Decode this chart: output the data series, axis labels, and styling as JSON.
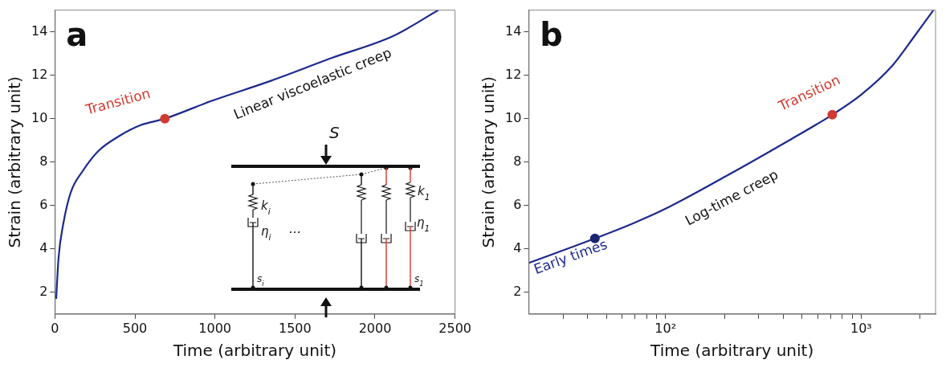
{
  "chart_data": [
    {
      "type": "line",
      "xlabel": "Time (arbitrary unit)",
      "ylabel": "Strain (arbitrary unit)",
      "xlim": [
        0,
        2500
      ],
      "ylim": [
        1,
        15
      ],
      "xticks": [
        0,
        500,
        1000,
        1500,
        2000,
        2500
      ],
      "yticks": [
        2,
        4,
        6,
        8,
        10,
        12,
        14
      ],
      "line_style": "solid",
      "series": [
        {
          "type": "line",
          "color": "#1c2a8c",
          "marker": "none",
          "x": [
            8,
            23,
            51,
            99,
            175,
            270,
            402,
            535,
            687,
            972,
            1352,
            1731,
            2111,
            2396
          ],
          "values": [
            1.7,
            3.6,
            5.1,
            6.6,
            7.6,
            8.5,
            9.2,
            9.7,
            10.0,
            10.8,
            11.75,
            12.8,
            13.8,
            15.0
          ]
        },
        {
          "type": "scatter",
          "color": "#d03a30",
          "marker": "circle",
          "x": [
            687
          ],
          "values": [
            10.0
          ]
        }
      ],
      "annotations": [
        "a",
        {
          "text": "Transition",
          "x": 687,
          "y": 10.0
        },
        "Linear viscoelastic creep",
        "S",
        "k$_{i}$",
        "η$_{i}$",
        "s$_{i}$",
        "...",
        "k$_{1}$",
        "η$_{1}$",
        "s$_{1}$"
      ]
    },
    {
      "type": "line",
      "log": "x",
      "xlabel": "Time (arbitrary unit)",
      "ylabel": "Strain (arbitrary unit)",
      "xlim": [
        20,
        2400
      ],
      "ylim": [
        1,
        15
      ],
      "xticks": [
        {
          "value": 30,
          "label": null
        },
        {
          "value": 40,
          "label": null
        },
        {
          "value": 50,
          "label": null
        },
        {
          "value": 60,
          "label": null
        },
        {
          "value": 70,
          "label": null
        },
        {
          "value": 80,
          "label": null
        },
        {
          "value": 90,
          "label": null
        },
        {
          "value": 100,
          "label": "10²"
        },
        {
          "value": 200,
          "label": null
        },
        {
          "value": 300,
          "label": null
        },
        {
          "value": 400,
          "label": null
        },
        {
          "value": 500,
          "label": null
        },
        {
          "value": 600,
          "label": null
        },
        {
          "value": 700,
          "label": null
        },
        {
          "value": 800,
          "label": null
        },
        {
          "value": 900,
          "label": null
        },
        {
          "value": 1000,
          "label": "10³"
        },
        {
          "value": 2000,
          "label": null
        }
      ],
      "yticks": [
        2,
        4,
        6,
        8,
        10,
        12,
        14
      ],
      "line_style": "solid",
      "series": [
        {
          "type": "line",
          "color": "#1c2a8c",
          "marker": "none",
          "x": [
            20,
            43.6,
            67.6,
            100,
            204.6,
            428,
            712,
            1000,
            1446,
            1873,
            2341
          ],
          "values": [
            3.35,
            4.48,
            5.16,
            5.85,
            7.36,
            9.0,
            10.18,
            11.1,
            12.45,
            13.8,
            15.0
          ]
        },
        {
          "type": "scatter",
          "color": "#1a2570",
          "marker": "circle",
          "x": [
            43.6
          ],
          "values": [
            4.48
          ]
        },
        {
          "type": "scatter",
          "color": "#d03a30",
          "marker": "circle",
          "x": [
            712
          ],
          "values": [
            10.18
          ]
        }
      ],
      "annotations": [
        "b",
        {
          "text": "Early times",
          "x": 43.6,
          "y": 4.48
        },
        {
          "text": "Transition",
          "x": 712,
          "y": 10.18
        },
        "Log-time creep"
      ]
    }
  ]
}
